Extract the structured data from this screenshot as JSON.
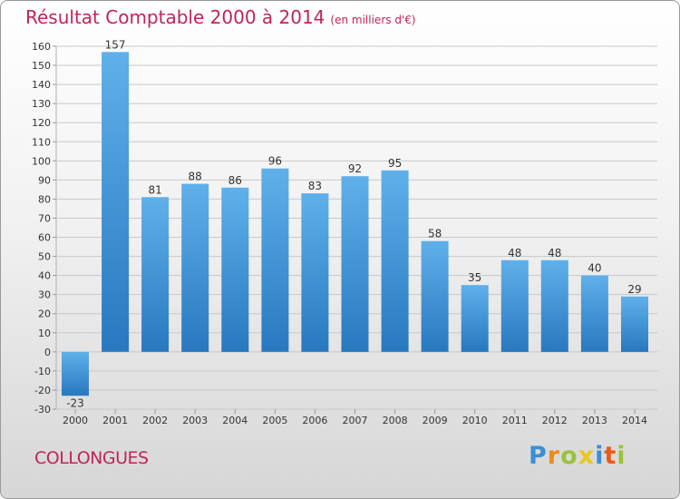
{
  "title": "Résultat Comptable 2000 à 2014",
  "subtitle": "(en milliers d'€)",
  "commune": "COLLONGUES",
  "logo": {
    "letters": [
      {
        "ch": "P",
        "color": "#3a8fd4"
      },
      {
        "ch": "r",
        "color": "#f08a1c"
      },
      {
        "ch": "o",
        "color": "#9bc23a"
      },
      {
        "ch": "x",
        "color": "#e8c81e"
      },
      {
        "ch": "i",
        "color": "#3a8fd4"
      },
      {
        "ch": "t",
        "color": "#e85a1c"
      },
      {
        "ch": "i",
        "color": "#9bc23a"
      }
    ]
  },
  "colors": {
    "title": "#c0245c",
    "bar_top": "#5fb0ea",
    "bar_bottom": "#2878c0",
    "grid": "#c8c8c8",
    "axis_text": "#333333"
  },
  "chart_data": {
    "type": "bar",
    "title": "Résultat Comptable 2000 à 2014",
    "subtitle": "(en milliers d'€)",
    "categories": [
      "2000",
      "2001",
      "2002",
      "2003",
      "2004",
      "2005",
      "2006",
      "2007",
      "2008",
      "2009",
      "2010",
      "2011",
      "2012",
      "2013",
      "2014"
    ],
    "values": [
      -23,
      157,
      81,
      88,
      86,
      96,
      83,
      92,
      95,
      58,
      35,
      48,
      48,
      40,
      29
    ],
    "data_labels": [
      "-23",
      "157",
      "81",
      "88",
      "86",
      "96",
      "83",
      "92",
      "95",
      "58",
      "35",
      "48",
      "48",
      "40",
      "29"
    ],
    "ylim": [
      -30,
      160
    ],
    "yticks": [
      -30,
      -20,
      -10,
      0,
      10,
      20,
      30,
      40,
      50,
      60,
      70,
      80,
      90,
      100,
      110,
      120,
      130,
      140,
      150,
      160
    ],
    "xlabel": "",
    "ylabel": "",
    "grid": true,
    "legend": false
  }
}
